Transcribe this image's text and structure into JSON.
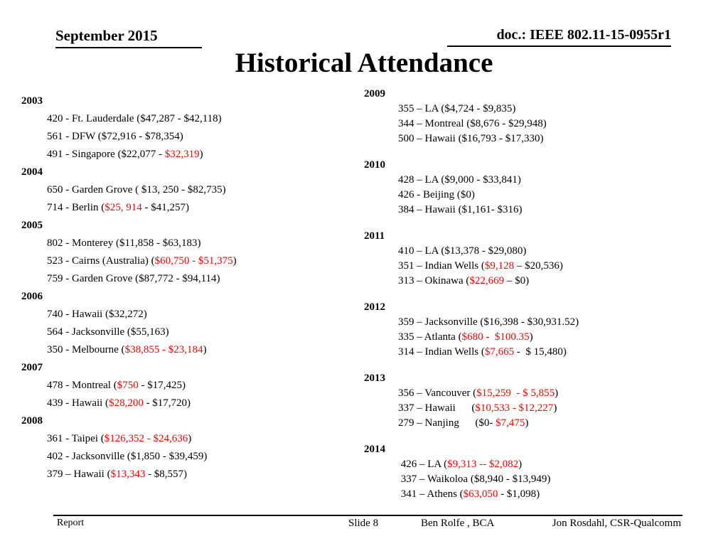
{
  "header": {
    "date": "September 2015",
    "doc_number": "doc.: IEEE 802.11-15-0955r1",
    "title": "Historical Attendance"
  },
  "colors": {
    "accent_red": "#ff0000",
    "text": "#000000",
    "background": "#ffffff"
  },
  "columns": [
    {
      "years": [
        {
          "year": "2003",
          "entries": [
            [
              {
                "t": "420 - Ft. Lauderdale ($47,287 - $42,118)",
                "r": false
              }
            ],
            [
              {
                "t": "561 - DFW ($72,916 - $78,354)",
                "r": false
              }
            ],
            [
              {
                "t": "491 - Singapore ($22,077 - ",
                "r": false
              },
              {
                "t": "$32,319",
                "r": true
              },
              {
                "t": ")",
                "r": false
              }
            ]
          ]
        },
        {
          "year": "2004",
          "entries": [
            [
              {
                "t": "650 - Garden Grove ( $13, 250 - $82,735)",
                "r": false
              }
            ],
            [
              {
                "t": "714 - Berlin (",
                "r": false
              },
              {
                "t": "$25, 914",
                "r": true
              },
              {
                "t": " - $41,257)",
                "r": false
              }
            ]
          ]
        },
        {
          "year": "2005",
          "entries": [
            [
              {
                "t": "802 - Monterey ($11,858 - $63,183)",
                "r": false
              }
            ],
            [
              {
                "t": "523 - Cairns (Australia) (",
                "r": false
              },
              {
                "t": "$60,750 - $51,375",
                "r": true
              },
              {
                "t": ")",
                "r": false
              }
            ],
            [
              {
                "t": "759 - Garden Grove ($87,772 - $94,114)",
                "r": false
              }
            ]
          ]
        },
        {
          "year": "2006",
          "entries": [
            [
              {
                "t": "740 - Hawaii ($32,272)",
                "r": false
              }
            ],
            [
              {
                "t": "564 - Jacksonville ($55,163)",
                "r": false
              }
            ],
            [
              {
                "t": "350 - Melbourne (",
                "r": false
              },
              {
                "t": "$38,855 - $23,184",
                "r": true
              },
              {
                "t": ")",
                "r": false
              }
            ]
          ]
        },
        {
          "year": "2007",
          "entries": [
            [
              {
                "t": "478 - Montreal (",
                "r": false
              },
              {
                "t": "$750",
                "r": true
              },
              {
                "t": " - $17,425)",
                "r": false
              }
            ],
            [
              {
                "t": "439 - Hawaii (",
                "r": false
              },
              {
                "t": "$28,200",
                "r": true
              },
              {
                "t": " - $17,720)",
                "r": false
              }
            ]
          ]
        },
        {
          "year": "2008",
          "entries": [
            [
              {
                "t": "361 - Taipei (",
                "r": false
              },
              {
                "t": "$126,352 - $24,636",
                "r": true
              },
              {
                "t": ")",
                "r": false
              }
            ],
            [
              {
                "t": "402 - Jacksonville ($1,850 - $39,459)",
                "r": false
              }
            ],
            [
              {
                "t": "379 – Hawaii (",
                "r": false
              },
              {
                "t": "$13,343",
                "r": true
              },
              {
                "t": " - $8,557)",
                "r": false
              }
            ]
          ]
        }
      ]
    },
    {
      "years": [
        {
          "year": "2009",
          "entries": [
            [
              {
                "t": "355 – LA ($4,724 - $9,835)",
                "r": false
              }
            ],
            [
              {
                "t": "344 – Montreal ($8,676 - $29,948)",
                "r": false
              }
            ],
            [
              {
                "t": "500 – Hawaii ($16,793 - $17,330)",
                "r": false
              }
            ]
          ]
        },
        {
          "year": "2010",
          "entries": [
            [
              {
                "t": "428 – LA ($9,000 - $33,841)",
                "r": false
              }
            ],
            [
              {
                "t": "426 - Beijing ($0)",
                "r": false
              }
            ],
            [
              {
                "t": "384 – Hawaii ($1,161- $316)",
                "r": false
              }
            ]
          ]
        },
        {
          "year": "2011",
          "entries": [
            [
              {
                "t": "410 – LA ($13,378 - $29,080)",
                "r": false
              }
            ],
            [
              {
                "t": "351 – Indian Wells (",
                "r": false
              },
              {
                "t": "$9,128",
                "r": true
              },
              {
                "t": " – $20,536)",
                "r": false
              }
            ],
            [
              {
                "t": "313 – Okinawa (",
                "r": false
              },
              {
                "t": "$22,669",
                "r": true
              },
              {
                "t": " – $0)",
                "r": false
              }
            ]
          ]
        },
        {
          "year": "2012",
          "entries": [
            [
              {
                "t": "359 – Jacksonville ($16,398 - $30,931.52)",
                "r": false
              }
            ],
            [
              {
                "t": "335 – Atlanta (",
                "r": false
              },
              {
                "t": "$680 -  $100.35",
                "r": true
              },
              {
                "t": ")",
                "r": false
              }
            ],
            [
              {
                "t": "314 – Indian Wells (",
                "r": false
              },
              {
                "t": "$7,665",
                "r": true
              },
              {
                "t": " -  $ 15,480)",
                "r": false
              }
            ]
          ]
        },
        {
          "year": "2013",
          "entries": [
            [
              {
                "t": "356 – Vancouver (",
                "r": false
              },
              {
                "t": "$15,259  - $ 5,855",
                "r": true
              },
              {
                "t": ")",
                "r": false
              }
            ],
            [
              {
                "t": "337 – Hawaii      (",
                "r": false
              },
              {
                "t": "$10,533 - $12,227",
                "r": true
              },
              {
                "t": ")",
                "r": false
              }
            ],
            [
              {
                "t": "279 – Nanjing      ($0- ",
                "r": false
              },
              {
                "t": "$7,475",
                "r": true
              },
              {
                "t": ")",
                "r": false
              }
            ]
          ]
        },
        {
          "year": "2014",
          "entries": [
            [
              {
                "t": " 426 – LA (",
                "r": false
              },
              {
                "t": "$9,313 -- $2,082",
                "r": true
              },
              {
                "t": ")",
                "r": false
              }
            ],
            [
              {
                "t": " 337 – Waikoloa ($8,940 - $13,949)",
                "r": false
              }
            ],
            [
              {
                "t": " 341 – Athens (",
                "r": false
              },
              {
                "t": "$63,050",
                "r": true
              },
              {
                "t": " - $1,098)",
                "r": false
              }
            ]
          ]
        }
      ]
    }
  ],
  "footer": {
    "left": "Report",
    "slide": "Slide 8",
    "center": "Ben Rolfe , BCA",
    "right": "Jon Rosdahl, CSR-Qualcomm"
  }
}
